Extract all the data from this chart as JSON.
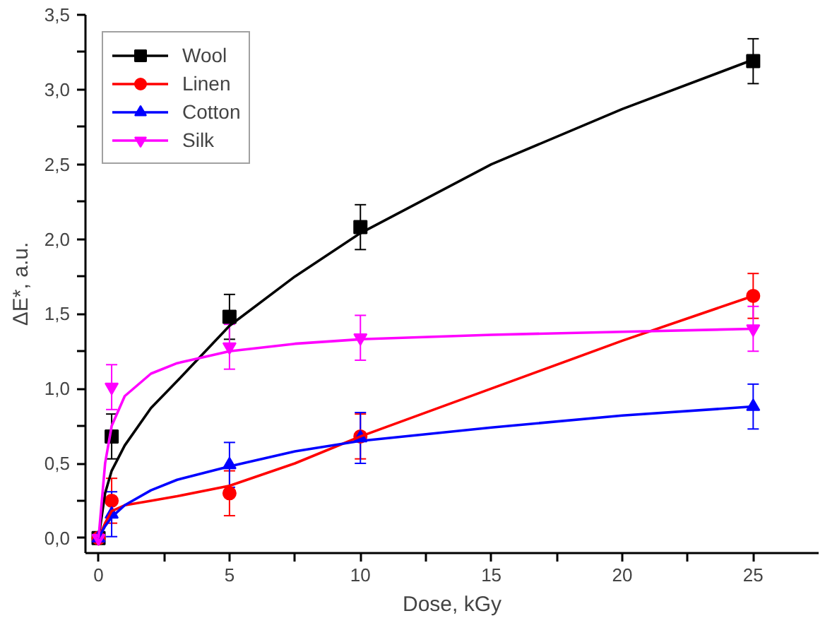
{
  "chart_data": {
    "type": "scatter",
    "xlabel": "Dose, kGy",
    "ylabel": "ΔE*, a.u.",
    "xlim": [
      -0.5,
      27.5
    ],
    "ylim": [
      -0.1,
      3.5
    ],
    "xticks": [
      0,
      {
        "value": 2.5,
        "label": null
      },
      5,
      {
        "value": 7.5,
        "label": null
      },
      10,
      {
        "value": 12.5,
        "label": null
      },
      15,
      {
        "value": 17.5,
        "label": null
      },
      20,
      {
        "value": 22.5,
        "label": null
      },
      25
    ],
    "yticks": [
      {
        "value": 0,
        "label": "0,0"
      },
      {
        "value": 0.25,
        "label": null
      },
      {
        "value": 0.5,
        "label": "0,5"
      },
      {
        "value": 0.75,
        "label": null
      },
      {
        "value": 1,
        "label": "1,0"
      },
      {
        "value": 1.25,
        "label": null
      },
      {
        "value": 1.5,
        "label": "1,5"
      },
      {
        "value": 1.75,
        "label": null
      },
      {
        "value": 2,
        "label": "2,0"
      },
      {
        "value": 2.25,
        "label": null
      },
      {
        "value": 2.5,
        "label": "2,5"
      },
      {
        "value": 2.75,
        "label": null
      },
      {
        "value": 3,
        "label": "3,0"
      },
      {
        "value": 3.25,
        "label": null
      },
      {
        "value": 3.5,
        "label": "3,5"
      }
    ],
    "grid": false,
    "legend": "top left",
    "x": [
      0,
      0.5,
      5,
      10,
      25
    ],
    "series": [
      {
        "name": "Wool",
        "color": "#000000",
        "marker": "square",
        "values": [
          0,
          0.68,
          1.48,
          2.08,
          3.19
        ],
        "errors": [
          null,
          0.15,
          0.15,
          0.15,
          0.15
        ]
      },
      {
        "name": "Linen",
        "color": "#ff0000",
        "marker": "circle",
        "values": [
          0,
          0.25,
          0.3,
          0.68,
          1.62
        ],
        "errors": [
          null,
          0.15,
          0.15,
          0.15,
          0.15
        ]
      },
      {
        "name": "Cotton",
        "color": "#0000ff",
        "marker": "triangle",
        "values": [
          0,
          0.16,
          0.49,
          0.67,
          0.88
        ],
        "errors": [
          null,
          0.15,
          0.15,
          0.17,
          0.15
        ]
      },
      {
        "name": "Silk",
        "color": "#ff00ff",
        "values": [
          0,
          1.01,
          1.28,
          1.34,
          1.4
        ],
        "errors": [
          null,
          0.15,
          0.15,
          0.15,
          0.15
        ]
      },
      {
        "type": "line",
        "color": "#000000",
        "x": [
          0,
          0.25,
          0.5,
          1,
          2,
          3,
          5,
          7.5,
          10,
          15,
          20,
          25
        ],
        "values": [
          0,
          0.3,
          0.45,
          0.62,
          0.87,
          1.05,
          1.42,
          1.75,
          2.04,
          2.5,
          2.87,
          3.2
        ]
      },
      {
        "type": "line",
        "color": "#ff0000",
        "x": [
          0,
          0.25,
          0.5,
          1,
          2,
          3,
          5,
          7.5,
          10,
          15,
          20,
          25
        ],
        "values": [
          0,
          0.1,
          0.18,
          0.22,
          0.25,
          0.28,
          0.35,
          0.5,
          0.68,
          1.0,
          1.32,
          1.62
        ]
      },
      {
        "type": "line",
        "color": "#0000ff",
        "x": [
          0,
          0.25,
          0.5,
          1,
          2,
          3,
          5,
          7.5,
          10,
          15,
          20,
          25
        ],
        "values": [
          0,
          0.08,
          0.14,
          0.22,
          0.32,
          0.39,
          0.48,
          0.58,
          0.65,
          0.74,
          0.82,
          0.88
        ]
      },
      {
        "type": "line",
        "color": "#ff00ff",
        "x": [
          0,
          0.25,
          0.5,
          1,
          2,
          3,
          5,
          7.5,
          10,
          15,
          20,
          25
        ],
        "values": [
          0,
          0.5,
          0.75,
          0.95,
          1.1,
          1.17,
          1.25,
          1.3,
          1.33,
          1.36,
          1.38,
          1.4
        ]
      }
    ]
  }
}
